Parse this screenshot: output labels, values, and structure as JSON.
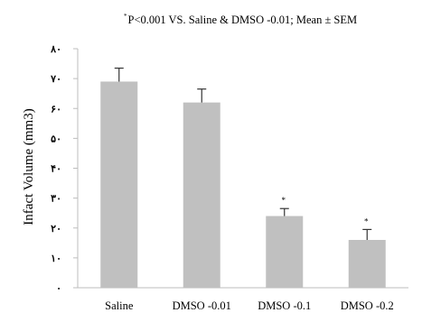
{
  "chart_data": {
    "type": "bar",
    "title_marker": "*",
    "title": "P<0.001 VS. Saline & DMSO -0.01; Mean ± SEM",
    "xlabel": "",
    "ylabel": "Infact Volume (mm3)",
    "ylim": [
      0,
      80
    ],
    "yticks": [
      0,
      10,
      20,
      30,
      40,
      50,
      60,
      70,
      80
    ],
    "ytick_labels": [
      "۰",
      "۱۰",
      "۲۰",
      "۳۰",
      "۴۰",
      "۵۰",
      "۶۰",
      "۷۰",
      "۸۰"
    ],
    "grid": false,
    "legend": "none",
    "bar_color": "#c0c0c0",
    "categories": [
      "Saline",
      "DMSO -0.01",
      "DMSO -0.1",
      "DMSO -0.2"
    ],
    "values": [
      69,
      62,
      24,
      16
    ],
    "errors": [
      4.5,
      4.5,
      2.5,
      3.5
    ],
    "annotations": [
      "",
      "",
      "*",
      "*"
    ]
  }
}
